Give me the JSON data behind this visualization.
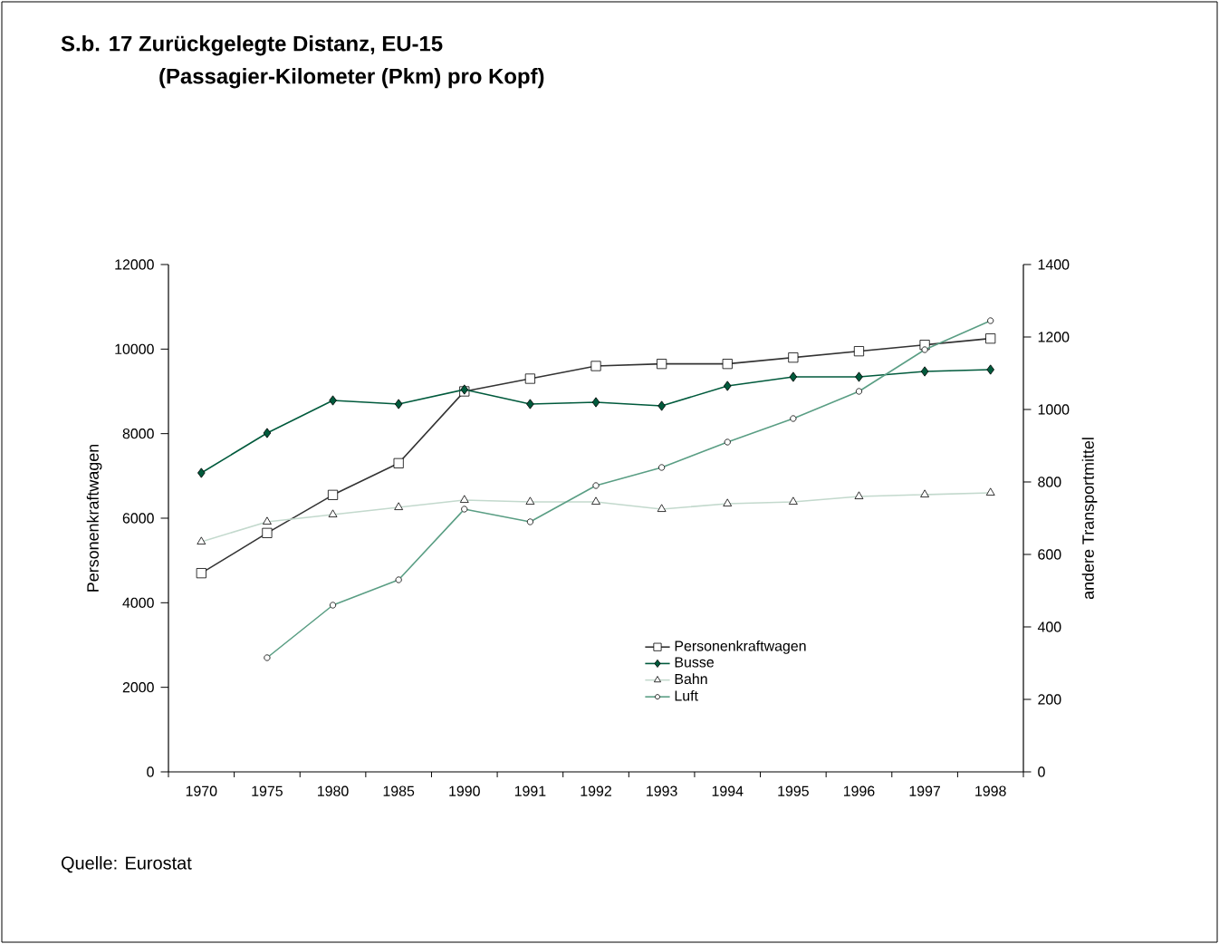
{
  "chart_data": {
    "type": "line",
    "title": "S.b. 17 Zurückgelegte Distanz, EU-15",
    "subtitle": "(Passagier-Kilometer (Pkm) pro Kopf)",
    "ylabel": "Personenkraftwagen",
    "y2label": "andere Transportmittel",
    "categories": [
      "1970",
      "1975",
      "1980",
      "1985",
      "1990",
      "1991",
      "1992",
      "1993",
      "1994",
      "1995",
      "1996",
      "1997",
      "1998"
    ],
    "ylim": [
      0,
      12000
    ],
    "yticks": [
      0,
      2000,
      4000,
      6000,
      8000,
      10000,
      12000
    ],
    "y2lim": [
      0,
      1400
    ],
    "y2ticks": [
      0,
      200,
      400,
      600,
      800,
      1000,
      1200,
      1400
    ],
    "grid": false,
    "legend": "bottom right",
    "series": [
      {
        "name": "Personenkraftwagen",
        "color": "#333333",
        "marker": "square",
        "values": [
          4700,
          5650,
          6550,
          7300,
          9000,
          9300,
          9600,
          9650,
          9650,
          9800,
          9950,
          10100,
          10250
        ]
      },
      {
        "name": "Busse",
        "color": "#005a3c",
        "marker": "diamond",
        "axis": "y2",
        "values": [
          825,
          935,
          1025,
          1015,
          1055,
          1015,
          1020,
          1010,
          1065,
          1090,
          1090,
          1105,
          1110
        ]
      },
      {
        "name": "Bahn",
        "color": "#c3d9cd",
        "marker": "triangle",
        "axis": "y2",
        "values": [
          635,
          690,
          710,
          730,
          750,
          745,
          745,
          725,
          740,
          745,
          760,
          765,
          770
        ]
      },
      {
        "name": "Luft",
        "color": "#5a9e84",
        "marker": "circle",
        "axis": "y2",
        "values": [
          null,
          315,
          460,
          530,
          725,
          690,
          790,
          840,
          910,
          975,
          1050,
          1165,
          1245
        ]
      }
    ],
    "annotations": [
      "Quelle:  Eurostat"
    ]
  }
}
